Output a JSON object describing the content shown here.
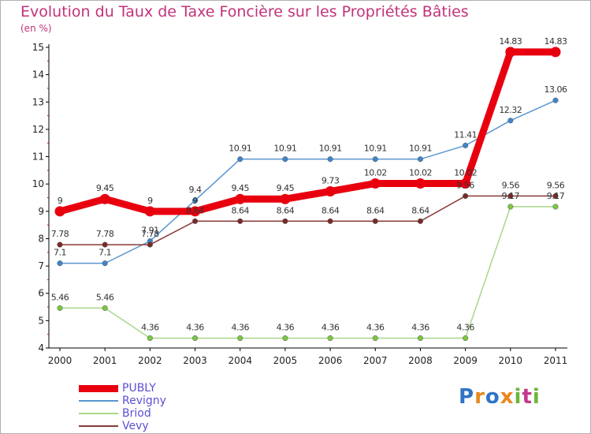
{
  "title": "Evolution du Taux de Taxe Foncière sur les Propriétés Bâties",
  "subtitle": "(en %)",
  "brand": {
    "text": "Proxiti",
    "letter_colors": [
      "#2f74c4",
      "#e8871e",
      "#2f74c4",
      "#e8871e",
      "#6ab63a",
      "#c23a8a",
      "#6ab63a"
    ]
  },
  "chart_data": {
    "type": "line",
    "x": [
      "2000",
      "2001",
      "2002",
      "2003",
      "2004",
      "2005",
      "2006",
      "2007",
      "2008",
      "2009",
      "2010",
      "2011"
    ],
    "ylim": [
      4,
      15
    ],
    "yticks": [
      4,
      5,
      6,
      7,
      8,
      9,
      10,
      11,
      12,
      13,
      14,
      15
    ],
    "grid": false,
    "legend_position": "bottom-left",
    "series": [
      {
        "name": "Revigny",
        "color": "#5a96d0",
        "marker": "#3f85c8",
        "values": [
          7.1,
          7.1,
          7.91,
          9.4,
          10.91,
          10.91,
          10.91,
          10.91,
          10.91,
          11.41,
          12.32,
          13.06
        ],
        "labels": [
          "7.1",
          "7.1",
          "7.91",
          "9.4",
          "10.91",
          "10.91",
          "10.91",
          "10.91",
          "10.91",
          "11.41",
          "12.32",
          "13.06"
        ]
      },
      {
        "name": "Briod",
        "color": "#a8d88a",
        "marker": "#7cc642",
        "values": [
          5.46,
          5.46,
          4.36,
          4.36,
          4.36,
          4.36,
          4.36,
          4.36,
          4.36,
          4.36,
          9.17,
          9.17
        ],
        "labels": [
          "5.46",
          "5.46",
          "4.36",
          "4.36",
          "4.36",
          "4.36",
          "4.36",
          "4.36",
          "4.36",
          "4.36",
          "9.17",
          "9.17"
        ]
      },
      {
        "name": "Vevy",
        "color": "#8a3a3a",
        "marker": "#7a2a2a",
        "values": [
          7.78,
          7.78,
          7.78,
          8.64,
          8.64,
          8.64,
          8.64,
          8.64,
          8.64,
          9.56,
          9.56,
          9.56
        ],
        "labels": [
          "7.78",
          "7.78",
          "7.78",
          "8.64",
          "8.64",
          "8.64",
          "8.64",
          "8.64",
          "8.64",
          "9.56",
          "9.56",
          "9.56"
        ]
      },
      {
        "name": "PUBLY",
        "color": "#e8000f",
        "marker": "#e8000f",
        "values": [
          9,
          9.45,
          9,
          9,
          9.45,
          9.45,
          9.73,
          10.02,
          10.02,
          10.02,
          14.83,
          14.83
        ],
        "labels": [
          "9",
          "9.45",
          "9",
          "9",
          "9.45",
          "9.45",
          "9.73",
          "10.02",
          "10.02",
          "10.02",
          "14.83",
          "14.83"
        ]
      }
    ],
    "legend": [
      {
        "name": "PUBLY",
        "color": "#e8000f",
        "text_color": "#5b4fd6"
      },
      {
        "name": "Revigny",
        "color": "#5a96d0",
        "text_color": "#5b4fd6"
      },
      {
        "name": "Briod",
        "color": "#a8d88a",
        "text_color": "#5b4fd6"
      },
      {
        "name": "Vevy",
        "color": "#8a3a3a",
        "text_color": "#5b4fd6"
      }
    ]
  }
}
